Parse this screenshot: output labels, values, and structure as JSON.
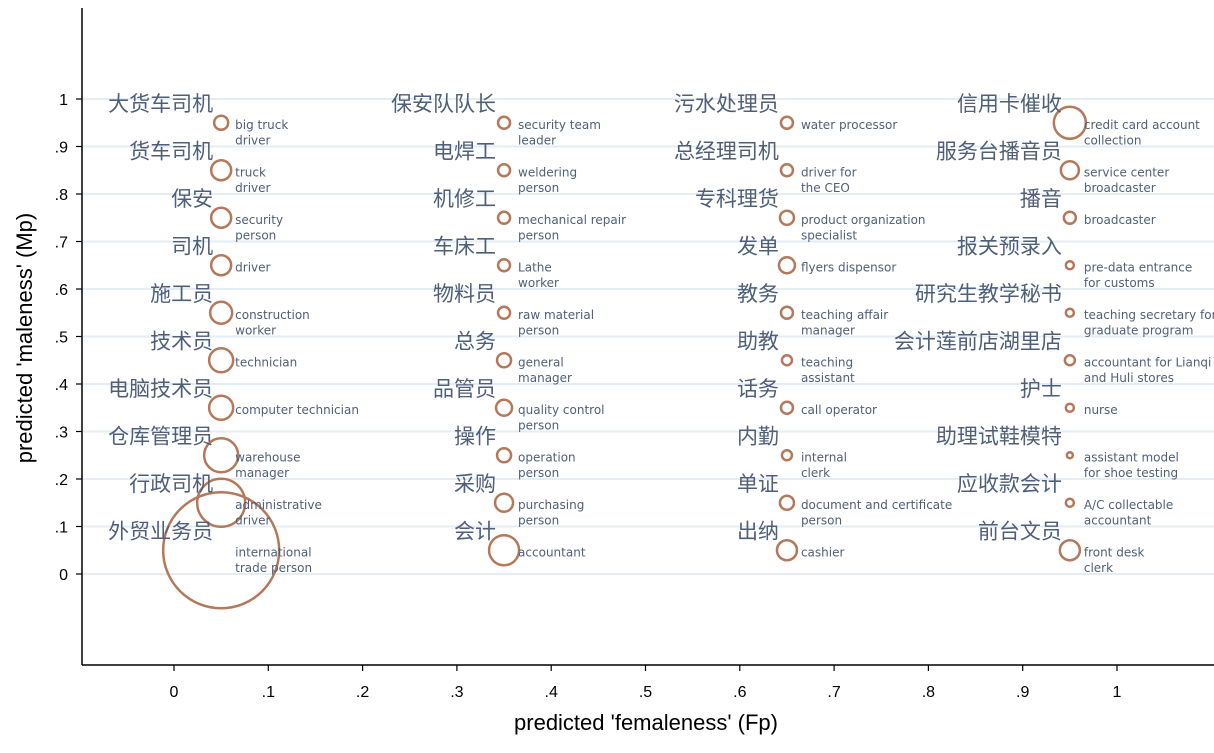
{
  "chart_data": {
    "type": "scatter",
    "title": "",
    "xlabel": "predicted 'femaleness' (Fp)",
    "ylabel": "predicted 'maleness' (Mp)",
    "xlim": [
      -0.1,
      1.1
    ],
    "ylim": [
      -0.2,
      1.2
    ],
    "xticks": [
      {
        "v": 0,
        "label": "0"
      },
      {
        "v": 0.1,
        "label": ".1"
      },
      {
        "v": 0.2,
        "label": ".2"
      },
      {
        "v": 0.3,
        "label": ".3"
      },
      {
        "v": 0.4,
        "label": ".4"
      },
      {
        "v": 0.5,
        "label": ".5"
      },
      {
        "v": 0.6,
        "label": ".6"
      },
      {
        "v": 0.7,
        "label": ".7"
      },
      {
        "v": 0.8,
        "label": ".8"
      },
      {
        "v": 0.9,
        "label": ".9"
      },
      {
        "v": 1,
        "label": "1"
      }
    ],
    "yticks": [
      {
        "v": 0,
        "label": "0"
      },
      {
        "v": 0.1,
        "label": ".1"
      },
      {
        "v": 0.2,
        "label": ".2"
      },
      {
        "v": 0.3,
        "label": ".3"
      },
      {
        "v": 0.4,
        "label": ".4"
      },
      {
        "v": 0.5,
        "label": ".5"
      },
      {
        "v": 0.6,
        "label": ".6"
      },
      {
        "v": 0.7,
        "label": ".7"
      },
      {
        "v": 0.8,
        "label": ".8"
      },
      {
        "v": 0.9,
        "label": ".9"
      },
      {
        "v": 1,
        "label": "1"
      }
    ],
    "grid": true,
    "colors": {
      "bubble": "#b4785a",
      "label": "#4f5f78",
      "grid": "#e4edf3"
    },
    "points": [
      {
        "x": 0.05,
        "y": 0.95,
        "r": 7,
        "zh": "大货车司机",
        "en": [
          "big truck",
          "driver"
        ]
      },
      {
        "x": 0.05,
        "y": 0.85,
        "r": 10,
        "zh": "货车司机",
        "en": [
          "truck",
          "driver"
        ]
      },
      {
        "x": 0.05,
        "y": 0.75,
        "r": 10,
        "zh": "保安",
        "en": [
          "security",
          "person"
        ]
      },
      {
        "x": 0.05,
        "y": 0.65,
        "r": 10,
        "zh": "司机",
        "en": [
          "driver"
        ]
      },
      {
        "x": 0.05,
        "y": 0.55,
        "r": 11,
        "zh": "施工员",
        "en": [
          "construction",
          "worker"
        ]
      },
      {
        "x": 0.05,
        "y": 0.45,
        "r": 12,
        "zh": "技术员",
        "en": [
          "technician"
        ]
      },
      {
        "x": 0.05,
        "y": 0.35,
        "r": 12,
        "zh": "电脑技术员",
        "en": [
          "computer technician"
        ]
      },
      {
        "x": 0.05,
        "y": 0.25,
        "r": 17,
        "zh": "仓库管理员",
        "en": [
          "warehouse",
          "manager"
        ]
      },
      {
        "x": 0.05,
        "y": 0.15,
        "r": 24,
        "zh": "行政司机",
        "en": [
          "administrative",
          "driver"
        ]
      },
      {
        "x": 0.05,
        "y": 0.05,
        "r": 58,
        "zh": "外贸业务员",
        "en": [
          "international",
          "trade person"
        ]
      },
      {
        "x": 0.35,
        "y": 0.95,
        "r": 6,
        "zh": "保安队队长",
        "en": [
          "security team",
          "leader"
        ]
      },
      {
        "x": 0.35,
        "y": 0.85,
        "r": 6,
        "zh": "电焊工",
        "en": [
          "weldering",
          "person"
        ]
      },
      {
        "x": 0.35,
        "y": 0.75,
        "r": 6,
        "zh": "机修工",
        "en": [
          "mechanical repair",
          "person"
        ]
      },
      {
        "x": 0.35,
        "y": 0.65,
        "r": 6,
        "zh": "车床工",
        "en": [
          "Lathe",
          "worker"
        ]
      },
      {
        "x": 0.35,
        "y": 0.55,
        "r": 6,
        "zh": "物料员",
        "en": [
          "raw material",
          "person"
        ]
      },
      {
        "x": 0.35,
        "y": 0.45,
        "r": 7,
        "zh": "总务",
        "en": [
          "general",
          "manager"
        ]
      },
      {
        "x": 0.35,
        "y": 0.35,
        "r": 8,
        "zh": "品管员",
        "en": [
          "quality control",
          "person"
        ]
      },
      {
        "x": 0.35,
        "y": 0.25,
        "r": 7,
        "zh": "操作",
        "en": [
          "operation",
          "person"
        ]
      },
      {
        "x": 0.35,
        "y": 0.15,
        "r": 9,
        "zh": "采购",
        "en": [
          "purchasing",
          "person"
        ]
      },
      {
        "x": 0.35,
        "y": 0.05,
        "r": 15,
        "zh": "会计",
        "en": [
          "accountant"
        ]
      },
      {
        "x": 0.65,
        "y": 0.95,
        "r": 6,
        "zh": "污水处理员",
        "en": [
          "water processor"
        ]
      },
      {
        "x": 0.65,
        "y": 0.85,
        "r": 6,
        "zh": "总经理司机",
        "en": [
          "driver for",
          "the CEO"
        ]
      },
      {
        "x": 0.65,
        "y": 0.75,
        "r": 7,
        "zh": "专科理货",
        "en": [
          "product organization",
          "specialist"
        ]
      },
      {
        "x": 0.65,
        "y": 0.65,
        "r": 8,
        "zh": "发单",
        "en": [
          "flyers dispensor"
        ]
      },
      {
        "x": 0.65,
        "y": 0.55,
        "r": 6,
        "zh": "教务",
        "en": [
          "teaching affair",
          "manager"
        ]
      },
      {
        "x": 0.65,
        "y": 0.45,
        "r": 5,
        "zh": "助教",
        "en": [
          "teaching",
          "assistant"
        ]
      },
      {
        "x": 0.65,
        "y": 0.35,
        "r": 6,
        "zh": "话务",
        "en": [
          "call operator"
        ]
      },
      {
        "x": 0.65,
        "y": 0.25,
        "r": 5,
        "zh": "内勤",
        "en": [
          "internal",
          "clerk"
        ]
      },
      {
        "x": 0.65,
        "y": 0.15,
        "r": 7,
        "zh": "单证",
        "en": [
          "document and certificate",
          "person"
        ]
      },
      {
        "x": 0.65,
        "y": 0.05,
        "r": 10,
        "zh": "出纳",
        "en": [
          "cashier"
        ]
      },
      {
        "x": 0.95,
        "y": 0.95,
        "r": 16,
        "zh": "信用卡催收",
        "en": [
          "credit card account",
          "collection"
        ]
      },
      {
        "x": 0.95,
        "y": 0.85,
        "r": 9,
        "zh": "服务台播音员",
        "en": [
          "service center",
          "broadcaster"
        ]
      },
      {
        "x": 0.95,
        "y": 0.75,
        "r": 6,
        "zh": "播音",
        "en": [
          "broadcaster"
        ]
      },
      {
        "x": 0.95,
        "y": 0.65,
        "r": 4,
        "zh": "报关预录入",
        "en": [
          "pre-data entrance",
          "for customs"
        ]
      },
      {
        "x": 0.95,
        "y": 0.55,
        "r": 4,
        "zh": "研究生教学秘书",
        "en": [
          "teaching secretary for",
          "graduate program"
        ]
      },
      {
        "x": 0.95,
        "y": 0.45,
        "r": 5,
        "zh": "会计莲前店湖里店",
        "en": [
          "accountant for Lianqi",
          "and Huli stores"
        ]
      },
      {
        "x": 0.95,
        "y": 0.35,
        "r": 4,
        "zh": "护士",
        "en": [
          "nurse"
        ]
      },
      {
        "x": 0.95,
        "y": 0.25,
        "r": 3,
        "zh": "助理试鞋模特",
        "en": [
          "assistant model",
          "for shoe testing"
        ]
      },
      {
        "x": 0.95,
        "y": 0.15,
        "r": 4,
        "zh": "应收款会计",
        "en": [
          "A/C collectable",
          "accountant"
        ]
      },
      {
        "x": 0.95,
        "y": 0.05,
        "r": 10,
        "zh": "前台文员",
        "en": [
          "front desk",
          "clerk"
        ]
      }
    ]
  }
}
